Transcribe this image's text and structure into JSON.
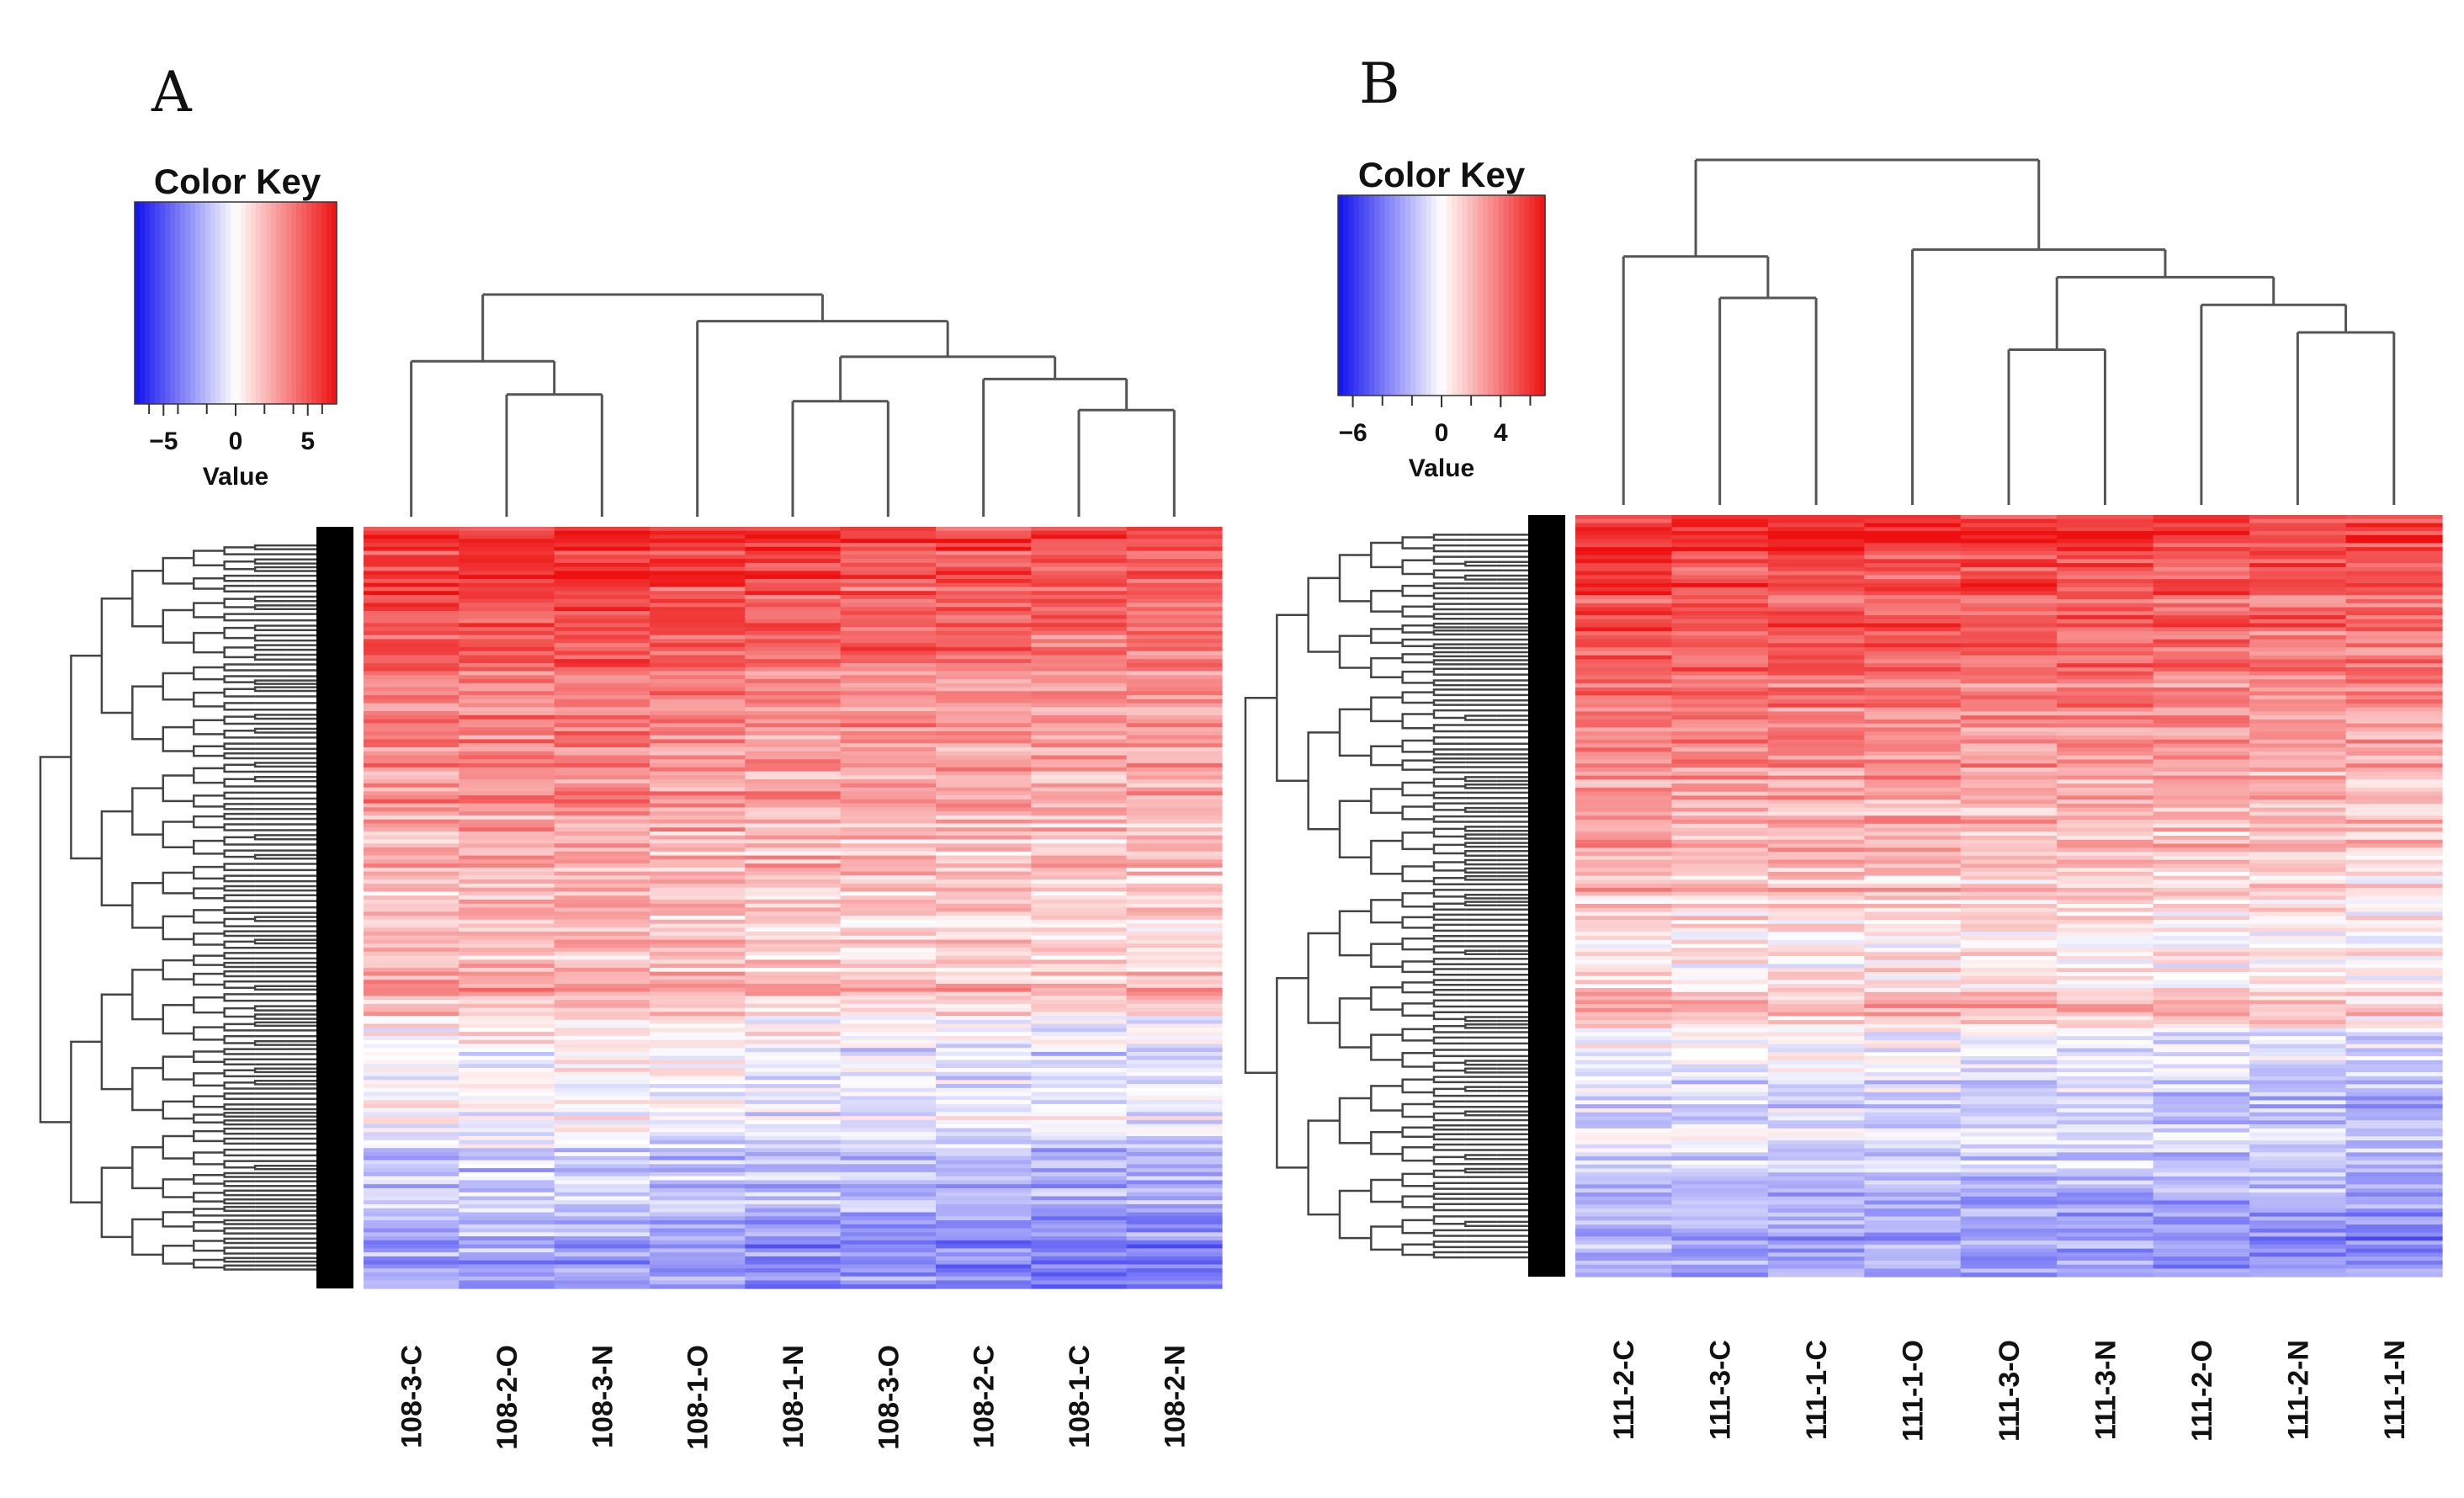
{
  "chart_data": [
    {
      "panel_label": "A",
      "type": "heatmap",
      "color_key": {
        "title": "Color Key",
        "value_label": "Value",
        "range": [
          -7,
          7
        ],
        "ticks": [
          -5,
          0,
          5
        ],
        "tick_labels": [
          "−5",
          "0",
          "5"
        ],
        "low_color": "#1010ee",
        "mid_color": "#ffffff",
        "high_color": "#ee1010"
      },
      "columns": [
        "108-3-C",
        "108-2-O",
        "108-3-N",
        "108-1-O",
        "108-1-N",
        "108-3-O",
        "108-2-C",
        "108-1-C",
        "108-2-N"
      ],
      "row_profile": [
        5.8,
        5.5,
        5.0,
        4.6,
        4.2,
        3.8,
        3.4,
        3.0,
        2.7,
        2.4,
        2.1,
        1.8,
        1.5,
        1.2,
        2.6,
        0.4,
        -0.6,
        -1.0,
        -0.3,
        -1.6,
        -2.2,
        -2.6,
        -3.0,
        -2.8
      ],
      "column_offsets": [
        0.3,
        0.4,
        0.5,
        0.2,
        -0.1,
        -0.2,
        -0.3,
        -0.4,
        -0.5
      ],
      "col_dendrogram": [
        [
          1,
          2
        ],
        [
          0,
          9
        ],
        [
          4,
          5
        ],
        [
          7,
          8
        ],
        [
          6,
          12
        ],
        [
          11,
          13
        ],
        [
          3,
          14
        ],
        [
          10,
          15
        ]
      ],
      "col_merge_heights": [
        0.55,
        0.7,
        0.52,
        0.48,
        0.62,
        0.72,
        0.88,
        1.0
      ]
    },
    {
      "panel_label": "B",
      "type": "heatmap",
      "color_key": {
        "title": "Color Key",
        "value_label": "Value",
        "range": [
          -7,
          7
        ],
        "ticks": [
          -6,
          0,
          4
        ],
        "tick_labels": [
          "−6",
          "0",
          "4"
        ],
        "low_color": "#1010ee",
        "mid_color": "#ffffff",
        "high_color": "#ee1010"
      },
      "columns": [
        "111-2-C",
        "111-3-C",
        "111-1-C",
        "111-1-O",
        "111-3-O",
        "111-3-N",
        "111-2-O",
        "111-2-N",
        "111-1-N"
      ],
      "row_profile": [
        6.0,
        5.6,
        5.2,
        4.8,
        4.3,
        3.9,
        3.5,
        3.1,
        2.7,
        2.3,
        2.0,
        1.6,
        1.2,
        0.8,
        0.2,
        2.4,
        -0.6,
        -1.2,
        -1.6,
        -0.8,
        -2.0,
        -2.6,
        -3.0,
        -2.6
      ],
      "column_offsets": [
        0.4,
        0.2,
        0.3,
        0.1,
        0.0,
        -0.1,
        -0.2,
        -0.3,
        -0.5
      ],
      "col_dendrogram": [
        [
          1,
          2
        ],
        [
          0,
          9
        ],
        [
          4,
          5
        ],
        [
          7,
          8
        ],
        [
          6,
          12
        ],
        [
          11,
          13
        ],
        [
          3,
          14
        ],
        [
          10,
          15
        ]
      ],
      "col_merge_heights": [
        0.6,
        0.72,
        0.45,
        0.5,
        0.58,
        0.66,
        0.74,
        1.0
      ]
    }
  ]
}
